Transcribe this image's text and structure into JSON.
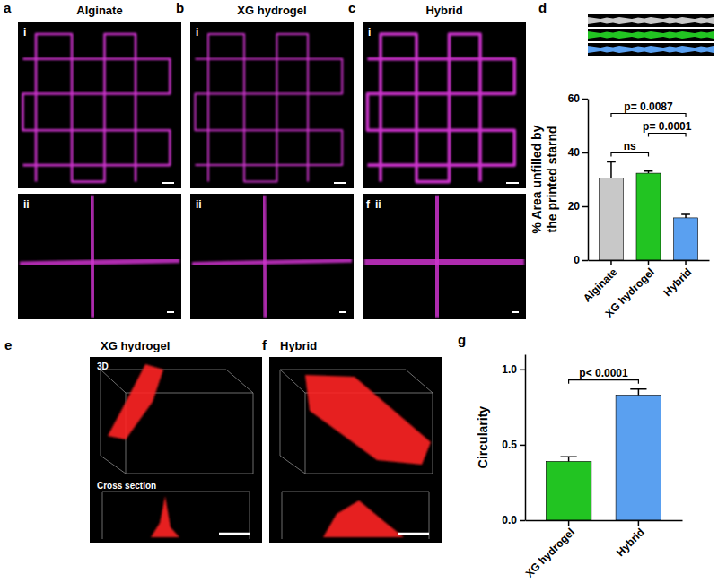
{
  "figure": {
    "panels": [
      {
        "letter": "a",
        "title": "Alginate",
        "sub": [
          "i",
          "ii"
        ]
      },
      {
        "letter": "b",
        "title": "XG hydrogel",
        "sub": [
          "i",
          "ii"
        ]
      },
      {
        "letter": "c",
        "title": "Hybrid",
        "sub": [
          "i",
          "ii"
        ],
        "extra": "f"
      },
      {
        "letter": "d"
      },
      {
        "letter": "e",
        "title": "XG hydrogel",
        "labels": [
          "3D",
          "Cross section"
        ]
      },
      {
        "letter": "f",
        "title": "Hybrid"
      },
      {
        "letter": "g"
      }
    ]
  },
  "chart_data": [
    {
      "type": "bar",
      "ylabel": "% Area unfilled by the printed starnd",
      "categories": [
        "Alginate",
        "XG hydrogel",
        "Hybrid"
      ],
      "values": [
        30.5,
        32.3,
        15.7
      ],
      "errors": [
        6.0,
        0.8,
        1.3
      ],
      "colors": [
        "#c8c8c8",
        "#22c422",
        "#5aa0f0"
      ],
      "ylim": [
        0,
        60
      ],
      "yticks": [
        0,
        20,
        40,
        60
      ],
      "annotations": [
        {
          "text": "ns",
          "between": [
            "Alginate",
            "XG hydrogel"
          ]
        },
        {
          "text": "p= 0.0001",
          "between": [
            "XG hydrogel",
            "Hybrid"
          ]
        },
        {
          "text": "p= 0.0087",
          "between": [
            "Alginate",
            "Hybrid"
          ]
        }
      ]
    },
    {
      "type": "bar",
      "ylabel": "Circularity",
      "categories": [
        "XG hydrogel",
        "Hybrid"
      ],
      "values": [
        0.39,
        0.83
      ],
      "errors": [
        0.03,
        0.04
      ],
      "colors": [
        "#22c422",
        "#5aa0f0"
      ],
      "ylim": [
        0,
        1.1
      ],
      "yticks": [
        {
          "value": 0,
          "label": "0.0"
        },
        {
          "value": 0.5,
          "label": "0.5"
        },
        {
          "value": 1,
          "label": "1.0"
        }
      ],
      "annotations": [
        {
          "text": "p< 0.0001",
          "between": [
            "XG hydrogel",
            "Hybrid"
          ]
        }
      ]
    }
  ]
}
